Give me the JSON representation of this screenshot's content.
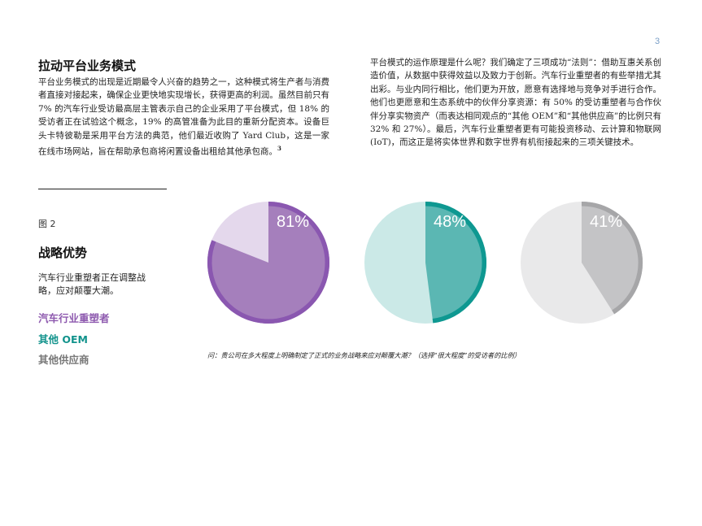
{
  "page": {
    "number": "3"
  },
  "article": {
    "title": "拉动平台业务模式",
    "left_paragraph": "平台业务模式的出现是近期最令人兴奋的趋势之一，这种模式将生产者与消费者直接对接起来，确保企业更快地实现增长，获得更高的利润。虽然目前只有 7% 的汽车行业受访最高层主管表示自己的企业采用了平台模式，但 18% 的受访者正在试验这个概念，19% 的高管准备为此目的重新分配资本。设备巨头卡特彼勒是采用平台方法的典范，他们最近收购了 Yard Club，这是一家在线市场网站，旨在帮助承包商将闲置设备出租给其他承包商。",
    "left_footnote": "3",
    "right_paragraph": "平台模式的运作原理是什么呢？我们确定了三项成功“法则”：借助互惠关系创造价值，从数据中获得效益以及致力于创新。汽车行业重塑者的有些举措尤其出彩。与业内同行相比，他们更为开放，愿意有选择地与竞争对手进行合作。他们也更愿意和生态系统中的伙伴分享资源：有 50% 的受访重塑者与合作伙伴分享实物资产（而表达相同观点的“其他 OEM”和“其他供应商”的比例只有 32% 和 27%）。最后，汽车行业重塑者更有可能投资移动、云计算和物联网 (IoT)，而这正是将实体世界和数字世界有机衔接起来的三项关键技术。"
  },
  "figure": {
    "label": "图 2",
    "title": "战略优势",
    "description": "汽车行业重塑者正在调整战略，应对颠覆大潮。",
    "legend": [
      {
        "label": "汽车行业重塑者",
        "color": "#8e5aaf"
      },
      {
        "label": "其他 OEM",
        "color": "#12938c"
      },
      {
        "label": "其他供应商",
        "color": "#777777"
      }
    ],
    "question": "问：贵公司在多大程度上明确制定了正式的业务战略来应对颠覆大潮？（选择“很大程度”的受访者的比例）"
  },
  "chart_data": {
    "type": "pie",
    "title": "战略优势",
    "series": [
      {
        "name": "汽车行业重塑者",
        "value": 81,
        "value_label": "81%",
        "fill": "#a57fbc",
        "ring": "#8a57b0",
        "remainder": "#e4d8ec"
      },
      {
        "name": "其他 OEM",
        "value": 48,
        "value_label": "48%",
        "fill": "#5bb7b3",
        "ring": "#0e9891",
        "remainder": "#cbe9e7"
      },
      {
        "name": "其他供应商",
        "value": 41,
        "value_label": "41%",
        "fill": "#c4c4c6",
        "ring": "#a6a6a8",
        "remainder": "#e9e9ea"
      }
    ]
  }
}
